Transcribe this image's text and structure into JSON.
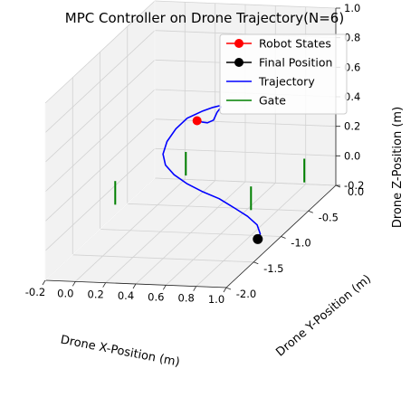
{
  "chart_data": {
    "type": "line3d",
    "title": "MPC Controller on Drone Trajectory(N=6)",
    "xlabel": "Drone X-Position (m)",
    "ylabel": "Drone Y-Position (m)",
    "zlabel": "Drone Z-Position (m)",
    "xlim": [
      -0.2,
      1.0
    ],
    "ylim": [
      -2.0,
      0.0
    ],
    "zlim": [
      -0.2,
      1.0
    ],
    "x_ticks": [
      "-0.2",
      "0.0",
      "0.2",
      "0.4",
      "0.6",
      "0.8",
      "1.0"
    ],
    "y_ticks": [
      "-2.0",
      "-1.5",
      "-1.0",
      "-0.5",
      "0.0"
    ],
    "z_ticks": [
      "-0.2",
      "0.0",
      "0.2",
      "0.4",
      "0.6",
      "0.8",
      "1.0"
    ],
    "grid": true,
    "legend_position": "top-right",
    "legend": [
      {
        "label": "Robot States",
        "color": "#ff0000",
        "marker": "circle"
      },
      {
        "label": "Final Position",
        "color": "#000000",
        "marker": "circle"
      },
      {
        "label": "Trajectory",
        "color": "#0000ff",
        "marker": "line"
      },
      {
        "label": "Gate",
        "color": "#008000",
        "marker": "line"
      }
    ],
    "trajectory": {
      "name": "Trajectory",
      "color": "#0000ff",
      "x": [
        0.08,
        0.12,
        0.16,
        0.2,
        0.22,
        0.24,
        0.22,
        0.17,
        0.1,
        0.0,
        -0.06,
        -0.09,
        -0.08,
        -0.02,
        0.08,
        0.2,
        0.33,
        0.47,
        0.6,
        0.72,
        0.82,
        0.88,
        0.9
      ],
      "y": [
        0.0,
        -0.02,
        -0.03,
        -0.03,
        -0.02,
        0.0,
        0.02,
        0.04,
        0.05,
        0.04,
        0.0,
        -0.08,
        -0.18,
        -0.3,
        -0.42,
        -0.52,
        -0.6,
        -0.67,
        -0.75,
        -0.84,
        -0.94,
        -1.05,
        -1.15
      ],
      "z": [
        0.2,
        0.2,
        0.2,
        0.22,
        0.27,
        0.3,
        0.3,
        0.28,
        0.25,
        0.2,
        0.14,
        0.08,
        0.03,
        0.0,
        -0.02,
        -0.04,
        -0.06,
        -0.08,
        -0.11,
        -0.13,
        -0.15,
        -0.17,
        -0.17
      ]
    },
    "robot_state": {
      "name": "Robot States",
      "x": 0.08,
      "y": 0.0,
      "z": 0.2,
      "color": "#ff0000"
    },
    "final_position": {
      "name": "Final Position",
      "x": 0.9,
      "y": -1.15,
      "z": -0.17,
      "color": "#000000"
    },
    "gates": [
      {
        "x": 0.1,
        "y": -0.26,
        "z": [
          -0.08,
          0.08
        ]
      },
      {
        "x": -0.15,
        "y": -0.86,
        "z": [
          -0.08,
          0.08
        ]
      },
      {
        "x": 0.9,
        "y": -0.3,
        "z": [
          -0.08,
          0.08
        ]
      },
      {
        "x": 0.75,
        "y": -0.86,
        "z": [
          -0.08,
          0.08
        ]
      }
    ],
    "gate_color": "#008000"
  }
}
